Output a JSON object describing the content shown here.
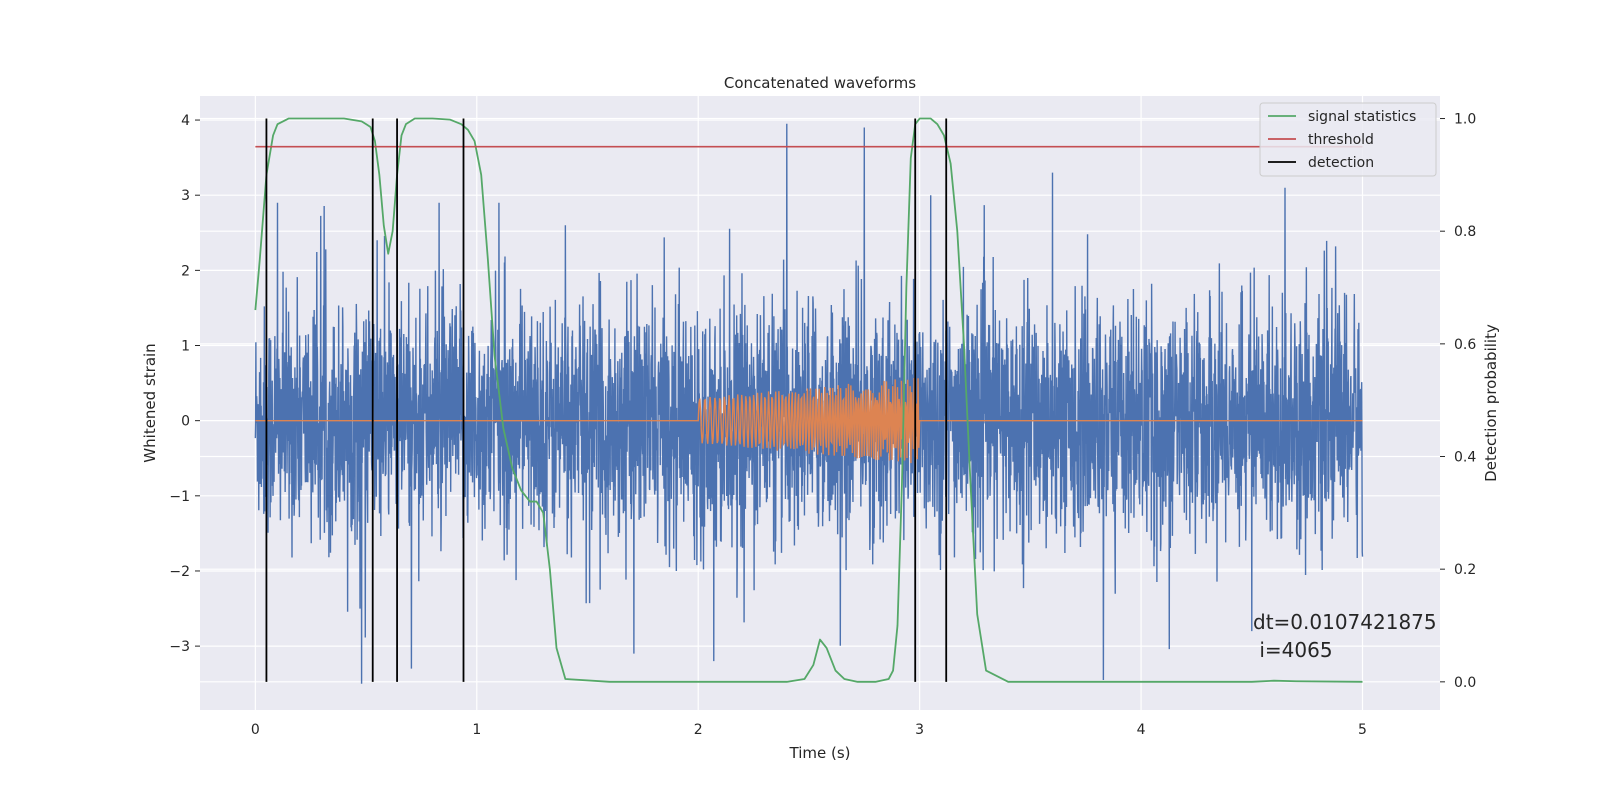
{
  "chart_data": {
    "type": "line",
    "title": "Concatenated waveforms",
    "xlabel": "Time (s)",
    "ylabel": "Whitened strain",
    "ylabel_right": "Detection probability",
    "xlim": [
      -0.25,
      5.35
    ],
    "ylim": [
      -3.85,
      4.32
    ],
    "ylim_right": [
      -0.05,
      1.04
    ],
    "x_ticks": [
      0,
      1,
      2,
      3,
      4,
      5
    ],
    "y_ticks": [
      -3,
      -2,
      -1,
      0,
      1,
      2,
      3,
      4
    ],
    "y_ticks_right": [
      0.0,
      0.2,
      0.4,
      0.6,
      0.8,
      1.0
    ],
    "x_tick_labels": [
      "0",
      "1",
      "2",
      "3",
      "4",
      "5"
    ],
    "y_tick_labels": [
      "−3",
      "−2",
      "−1",
      "0",
      "1",
      "2",
      "3",
      "4"
    ],
    "y_tick_labels_right": [
      "0.0",
      "0.2",
      "0.4",
      "0.6",
      "0.8",
      "1.0"
    ],
    "grid": true,
    "background": "#eaeaf2",
    "legend_placement": "top-right",
    "strain": {
      "color": "#4c72b0",
      "x_range": [
        0,
        5
      ],
      "typical_amplitude": 1.0,
      "peaks": [
        {
          "x": 0.48,
          "y": -3.5
        },
        {
          "x": 0.55,
          "y": 2.4
        },
        {
          "x": 0.83,
          "y": 2.9
        },
        {
          "x": 1.1,
          "y": 2.9
        },
        {
          "x": 1.71,
          "y": -3.1
        },
        {
          "x": 2.07,
          "y": -3.2
        },
        {
          "x": 2.4,
          "y": 3.95
        },
        {
          "x": 2.75,
          "y": 3.9
        },
        {
          "x": 3.6,
          "y": 3.3
        },
        {
          "x": 3.83,
          "y": -3.45
        },
        {
          "x": 4.65,
          "y": 3.1
        },
        {
          "x": 3.05,
          "y": 3.0
        },
        {
          "x": 0.1,
          "y": 2.9
        },
        {
          "x": 4.5,
          "y": -2.8
        },
        {
          "x": 1.4,
          "y": 2.6
        }
      ]
    },
    "template": {
      "color": "#dd8452",
      "chirp_start": 2.0,
      "chirp_end": 3.0,
      "start_amplitude": 0.3,
      "end_amplitude": 0.58,
      "start_frequency": 40,
      "end_frequency": 110
    },
    "series": [
      {
        "name": "signal statistics",
        "color": "#55a868",
        "axis": "right",
        "x": [
          0.0,
          0.02,
          0.05,
          0.08,
          0.1,
          0.15,
          0.2,
          0.3,
          0.4,
          0.48,
          0.5,
          0.52,
          0.54,
          0.56,
          0.58,
          0.6,
          0.62,
          0.64,
          0.66,
          0.68,
          0.72,
          0.8,
          0.88,
          0.93,
          0.96,
          0.99,
          1.02,
          1.05,
          1.08,
          1.12,
          1.16,
          1.2,
          1.24,
          1.27,
          1.3,
          1.33,
          1.36,
          1.4,
          1.6,
          2.0,
          2.4,
          2.48,
          2.52,
          2.55,
          2.58,
          2.62,
          2.66,
          2.72,
          2.8,
          2.86,
          2.88,
          2.9,
          2.92,
          2.94,
          2.96,
          2.98,
          3.0,
          3.05,
          3.08,
          3.11,
          3.14,
          3.17,
          3.2,
          3.23,
          3.26,
          3.3,
          3.4,
          4.0,
          4.5,
          4.6,
          4.7,
          5.0
        ],
        "y": [
          0.66,
          0.75,
          0.9,
          0.97,
          0.99,
          1.0,
          1.0,
          1.0,
          1.0,
          0.995,
          0.99,
          0.985,
          0.96,
          0.9,
          0.81,
          0.76,
          0.8,
          0.9,
          0.97,
          0.99,
          1.0,
          1.0,
          0.998,
          0.99,
          0.98,
          0.96,
          0.9,
          0.75,
          0.58,
          0.45,
          0.38,
          0.34,
          0.32,
          0.32,
          0.3,
          0.2,
          0.06,
          0.005,
          0.0,
          0.0,
          0.0,
          0.005,
          0.03,
          0.075,
          0.06,
          0.02,
          0.005,
          0.0,
          0.0,
          0.005,
          0.02,
          0.1,
          0.35,
          0.7,
          0.93,
          0.99,
          1.0,
          1.0,
          0.99,
          0.97,
          0.92,
          0.8,
          0.6,
          0.35,
          0.12,
          0.02,
          0.0,
          0.0,
          0.0,
          0.002,
          0.001,
          0.0
        ]
      },
      {
        "name": "threshold",
        "color": "#c44e52",
        "axis": "right",
        "x": [
          0,
          5
        ],
        "y": [
          0.95,
          0.95
        ]
      },
      {
        "name": "detection",
        "color": "#000000",
        "axis": "right",
        "type": "vlines",
        "x": [
          0.05,
          0.53,
          0.64,
          0.94,
          2.98,
          3.12
        ],
        "y_range": [
          0.0,
          1.0
        ]
      }
    ],
    "annotation": {
      "line1": "dt=0.0107421875",
      "line2": " i=4065"
    }
  }
}
